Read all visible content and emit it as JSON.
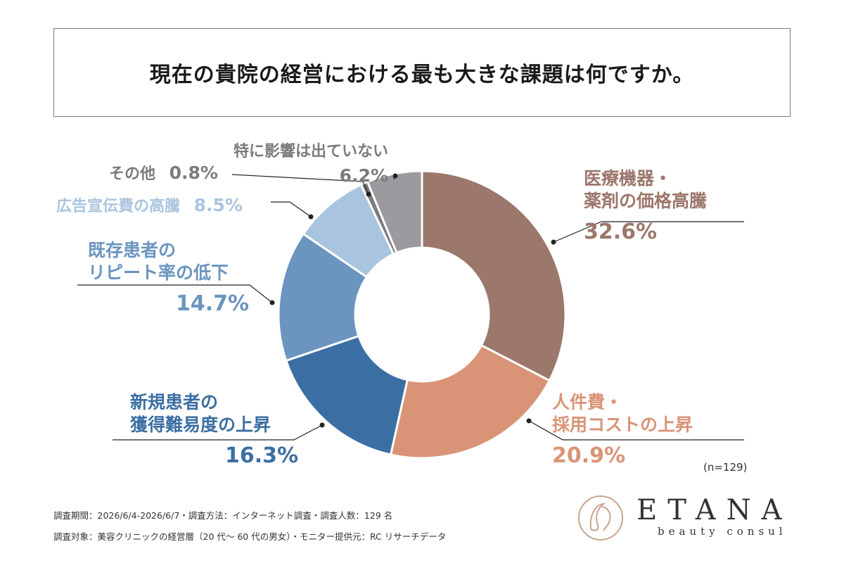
{
  "title": "現在の貴院の経営における最も大きな課題は何ですか。",
  "chart_data": {
    "type": "donut",
    "total_label": "(n=129)",
    "slices": [
      {
        "name_lines": [
          "医療機器・",
          "薬剤の価格高騰"
        ],
        "value": 32.6,
        "pct_label": "32.6%",
        "color": "#9c776b"
      },
      {
        "name_lines": [
          "人件費・",
          "採用コストの上昇"
        ],
        "value": 20.9,
        "pct_label": "20.9%",
        "color": "#d99477"
      },
      {
        "name_lines": [
          "新規患者の",
          "獲得難易度の上昇"
        ],
        "value": 16.3,
        "pct_label": "16.3%",
        "color": "#3b6fa3"
      },
      {
        "name_lines": [
          "既存患者の",
          "リピート率の低下"
        ],
        "value": 14.7,
        "pct_label": "14.7%",
        "color": "#6b95be"
      },
      {
        "name_lines": [
          "広告宣伝費の高騰"
        ],
        "value": 8.5,
        "pct_label": "8.5%",
        "color": "#a9c4df"
      },
      {
        "name_lines": [
          "その他"
        ],
        "value": 0.8,
        "pct_label": "0.8%",
        "color": "#7b7b7b"
      },
      {
        "name_lines": [
          "特に影響は出ていない"
        ],
        "value": 6.2,
        "pct_label": "6.2%",
        "color": "#9b9a9e"
      }
    ]
  },
  "notes": {
    "line1": "調査期間：2026/6/4-2026/6/7・調査方法：インターネット調査・調査人数：129 名",
    "line2": "調査対象：美容クリニックの経営層（20 代～ 60 代の男女）・モニター提供元：RC リサーチデータ"
  },
  "brand": {
    "name": "ETANA",
    "sub": "beauty consul"
  }
}
